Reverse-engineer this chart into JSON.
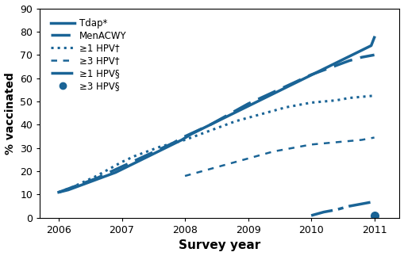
{
  "color": "#1a6496",
  "background": "#ffffff",
  "xlabel": "Survey year",
  "ylabel": "% vaccinated",
  "ylim": [
    0,
    90
  ],
  "xlim": [
    2005.7,
    2011.4
  ],
  "yticks": [
    0,
    10,
    20,
    30,
    40,
    50,
    60,
    70,
    80,
    90
  ],
  "xticks": [
    2006,
    2007,
    2008,
    2009,
    2010,
    2011
  ],
  "series": {
    "Tdap": {
      "x": [
        2006.0,
        2006.15,
        2006.3,
        2006.45,
        2006.6,
        2006.75,
        2006.9,
        2007.05,
        2007.2,
        2007.35,
        2007.5,
        2007.65,
        2007.8,
        2007.95,
        2008.1,
        2008.25,
        2008.4,
        2008.55,
        2008.7,
        2008.85,
        2009.0,
        2009.15,
        2009.3,
        2009.45,
        2009.6,
        2009.75,
        2009.9,
        2010.05,
        2010.2,
        2010.35,
        2010.5,
        2010.65,
        2010.8,
        2010.95,
        2011.0
      ],
      "y": [
        11,
        12,
        13.5,
        15,
        16.5,
        18,
        19.5,
        21.5,
        23.5,
        25.5,
        27.5,
        29.5,
        31.5,
        33.5,
        36,
        38,
        40,
        42,
        44,
        46,
        48,
        50,
        52,
        54,
        56,
        58,
        60,
        62,
        64,
        66,
        68,
        70,
        72,
        74,
        77.5
      ],
      "linestyle": "solid",
      "linewidth": 2.5,
      "label": "Tdap*"
    },
    "MenACWY": {
      "x": [
        2006.0,
        2006.2,
        2006.4,
        2006.6,
        2006.8,
        2007.0,
        2007.2,
        2007.4,
        2007.6,
        2007.8,
        2008.0,
        2008.2,
        2008.4,
        2008.6,
        2008.8,
        2009.0,
        2009.2,
        2009.4,
        2009.6,
        2009.8,
        2010.0,
        2010.2,
        2010.4,
        2010.6,
        2010.8,
        2011.0
      ],
      "y": [
        11,
        13,
        15,
        17,
        19.5,
        22,
        24.5,
        27,
        29.5,
        32,
        35,
        37.5,
        40,
        43,
        46,
        49,
        51.5,
        54,
        56.5,
        59,
        61.5,
        63.5,
        65.5,
        67.5,
        69,
        70
      ],
      "linestyle": "dashed",
      "linewidth": 2.5,
      "dashes": [
        7,
        3
      ],
      "label": "MenACWY"
    },
    "ge1HPV_dagger": {
      "x": [
        2006.0,
        2006.2,
        2006.4,
        2006.6,
        2006.8,
        2007.0,
        2007.2,
        2007.4,
        2007.6,
        2007.8,
        2008.0,
        2008.2,
        2008.4,
        2008.6,
        2008.8,
        2009.0,
        2009.2,
        2009.4,
        2009.6,
        2009.8,
        2010.0,
        2010.2,
        2010.4,
        2010.6,
        2010.8,
        2011.0
      ],
      "y": [
        11,
        13,
        15.5,
        18,
        21,
        24,
        26.5,
        28.5,
        30.5,
        32,
        33.5,
        35.5,
        37.5,
        39.5,
        41.5,
        43,
        44.5,
        46,
        47.5,
        48.5,
        49.5,
        50,
        50.5,
        51.5,
        52,
        52.5
      ],
      "linestyle": "dotted",
      "linewidth": 2.2,
      "label": "≥1 HPV†"
    },
    "ge3HPV_dagger": {
      "x": [
        2008.0,
        2008.2,
        2008.4,
        2008.6,
        2008.8,
        2009.0,
        2009.2,
        2009.4,
        2009.6,
        2009.8,
        2010.0,
        2010.2,
        2010.4,
        2010.6,
        2010.8,
        2011.0
      ],
      "y": [
        18,
        19.5,
        21,
        22.5,
        24,
        25.5,
        27,
        28.5,
        29.5,
        30.5,
        31.5,
        32,
        32.5,
        33,
        33.5,
        34.5
      ],
      "dashes": [
        3,
        3
      ],
      "linewidth": 1.8,
      "label": "≥3 HPV†"
    },
    "ge1HPV_section": {
      "x": [
        2010.0,
        2010.2,
        2010.4,
        2010.6,
        2010.8,
        2011.0
      ],
      "y": [
        1.0,
        2.5,
        3.5,
        5.0,
        6.0,
        7.0
      ],
      "dashes": [
        8,
        2,
        2,
        2
      ],
      "linewidth": 2.5,
      "label": "≥1 HPV§"
    },
    "ge3HPV_section": {
      "x": [
        2011.0
      ],
      "y": [
        1.0
      ],
      "marker": "o",
      "markersize": 7,
      "label": "≥3 HPV§"
    }
  },
  "legend_fontsize": 8.5,
  "tick_fontsize": 9,
  "xlabel_fontsize": 11,
  "ylabel_fontsize": 10
}
